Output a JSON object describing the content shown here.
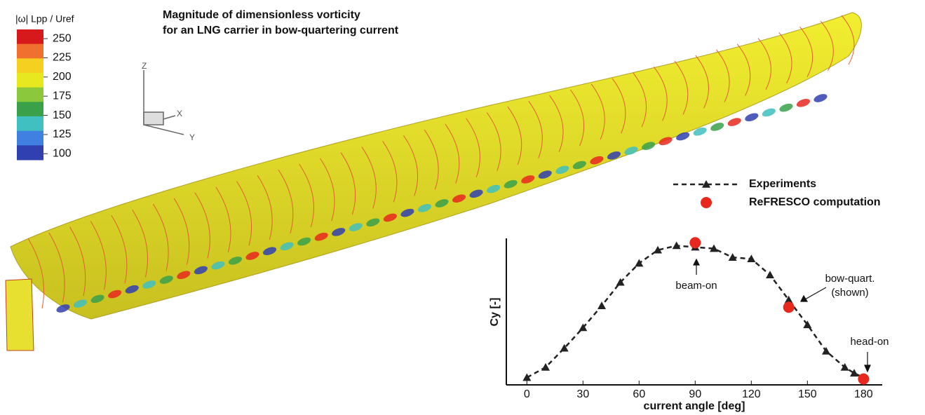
{
  "chart_data": {
    "type": "line",
    "title": [
      "Magnitude of dimensionless vorticity",
      "for an LNG carrier in bow-quartering current"
    ],
    "colorbar": {
      "title": "|ω| Lpp / Uref",
      "lim": [
        92,
        262
      ],
      "ticks": [
        250,
        225,
        200,
        175,
        150,
        125,
        100
      ],
      "colors": [
        "#d7191c",
        "#f07030",
        "#f5d020",
        "#e8e820",
        "#8cc83c",
        "#3aa04a",
        "#40c0c0",
        "#4080e0",
        "#3040b0"
      ]
    },
    "triad_labels": [
      "Z",
      "X",
      "Y"
    ],
    "x_label": "current angle [deg]",
    "y_label": "Cy [-]",
    "xlim": [
      -11,
      190
    ],
    "xticks": [
      0,
      30,
      60,
      90,
      120,
      150,
      180
    ],
    "ylim": [
      0,
      1
    ],
    "series": [
      {
        "name": "Experiments",
        "color": "#222222",
        "marker": "triangle",
        "dashed": true,
        "x": [
          0,
          10,
          20,
          30,
          40,
          50,
          60,
          70,
          80,
          90,
          100,
          110,
          120,
          130,
          140,
          150,
          160,
          170,
          175,
          180
        ],
        "values": [
          0.05,
          0.12,
          0.25,
          0.39,
          0.54,
          0.7,
          0.83,
          0.92,
          0.95,
          0.94,
          0.93,
          0.87,
          0.86,
          0.75,
          0.58,
          0.41,
          0.23,
          0.12,
          0.08,
          0.05
        ]
      },
      {
        "name": "ReFRESCO computation",
        "color": "#e8281e",
        "marker": "circle",
        "dashed": false,
        "x": [
          90,
          140,
          180
        ],
        "values": [
          0.97,
          0.53,
          0.04
        ]
      }
    ],
    "annotations": [
      "beam-on",
      "bow-quart.",
      "(shown)",
      "head-on"
    ]
  }
}
